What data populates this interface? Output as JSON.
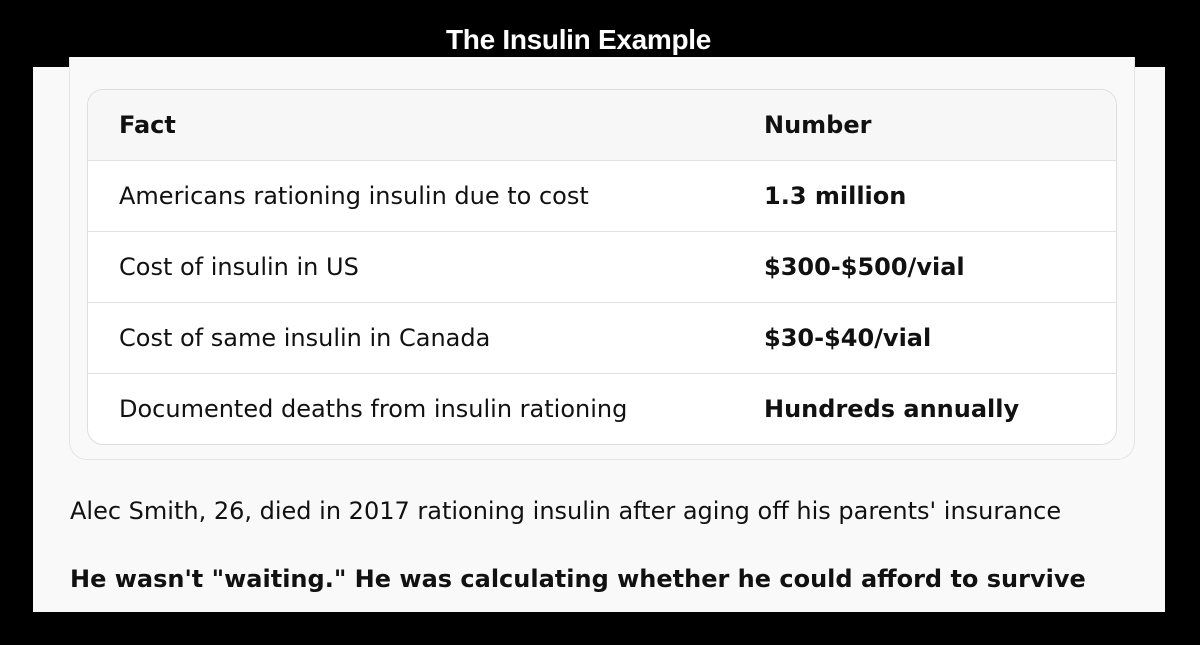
{
  "header": {
    "title": "The Insulin Example"
  },
  "table": {
    "columns": [
      "Fact",
      "Number"
    ],
    "rows": [
      [
        "Americans rationing insulin due to cost",
        "1.3 million"
      ],
      [
        "Cost of insulin in US",
        "$300-$500/vial"
      ],
      [
        "Cost of same insulin in Canada",
        "$30-$40/vial"
      ],
      [
        "Documented deaths from insulin rationing",
        "Hundreds annually"
      ]
    ]
  },
  "paragraphs": [
    "Alec Smith, 26, died in 2017 rationing insulin after aging off his parents' insurance",
    "He wasn't \"waiting.\" He was calculating whether he could afford to survive"
  ]
}
